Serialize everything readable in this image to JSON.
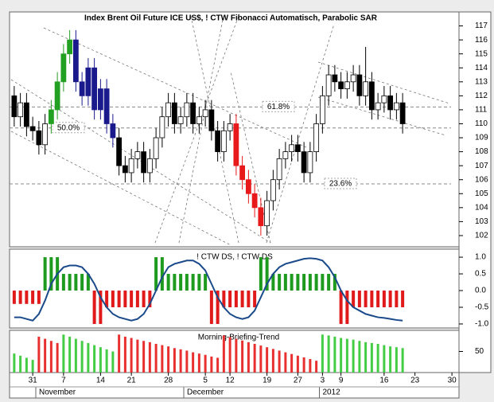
{
  "chart_data": [
    {
      "type": "candlestick",
      "title": "Index Brent Oil Future ICE US$, ! CTW Fibonacci Automatisch, Parabolic SAR",
      "categories": [
        null,
        null,
        null,
        "31",
        null,
        null,
        null,
        null,
        "7",
        null,
        null,
        null,
        null,
        null,
        "14",
        null,
        null,
        null,
        null,
        "21",
        null,
        null,
        null,
        null,
        null,
        "28",
        null,
        null,
        null,
        null,
        null,
        "5",
        null,
        null,
        null,
        "12",
        null,
        null,
        null,
        null,
        null,
        "19",
        null,
        null,
        null,
        null,
        "27",
        null,
        null,
        null,
        "3",
        null,
        null,
        "9",
        null,
        null,
        null,
        null,
        null,
        null,
        "16",
        null,
        null,
        null,
        null,
        "23",
        null,
        null,
        null,
        null,
        null,
        "30"
      ],
      "months": [
        null,
        null,
        null,
        null,
        "November",
        null,
        null,
        null,
        null,
        null,
        null,
        null,
        null,
        null,
        null,
        null,
        null,
        null,
        null,
        null,
        null,
        null,
        null,
        null,
        null,
        null,
        null,
        null,
        "December",
        null,
        null,
        null,
        null,
        null,
        null,
        null,
        null,
        null,
        null,
        null,
        null,
        null,
        null,
        null,
        null,
        null,
        null,
        null,
        null,
        null,
        "2012",
        null,
        null,
        null,
        null,
        null,
        null,
        null,
        null,
        null,
        null,
        null,
        null,
        null,
        null,
        null,
        null,
        null,
        null,
        null,
        null,
        null
      ],
      "open": [
        112,
        110.5,
        111.5,
        109.8,
        109.5,
        108.5,
        110,
        111,
        113,
        115,
        116,
        113,
        112,
        114,
        111,
        112.5,
        110,
        109,
        107,
        106.5,
        107.5,
        108,
        106.5,
        107.5,
        109,
        110.5,
        111.5,
        110,
        110.5,
        111.5,
        110,
        110.5,
        111,
        109.5,
        108,
        109.5,
        110,
        107,
        106,
        105,
        104,
        102.7,
        104.5,
        106,
        107.5,
        108,
        108.5,
        108,
        106.5,
        108,
        110,
        112,
        113.5,
        113,
        112.5,
        113,
        113.5,
        112,
        113,
        111,
        111.5,
        112,
        111,
        111.5,
        null,
        null,
        null,
        null,
        null,
        null,
        null,
        null
      ],
      "high": [
        112.7,
        112.2,
        112.2,
        110.5,
        110.2,
        110.7,
        111.7,
        113.7,
        115.7,
        116.7,
        116.7,
        113.7,
        114.7,
        114.7,
        113.2,
        113.2,
        110.7,
        109.7,
        107.7,
        108.2,
        108.7,
        108.7,
        108.2,
        109.7,
        111.2,
        112.2,
        112.2,
        111.2,
        112.2,
        112.2,
        111.2,
        111.7,
        111.7,
        110.2,
        110.2,
        110.7,
        110.7,
        107.7,
        106.7,
        105.7,
        104.7,
        105.2,
        106.7,
        108.2,
        108.7,
        109.2,
        109.2,
        108.7,
        108.7,
        110.7,
        112.7,
        114.2,
        114.2,
        113.7,
        113.7,
        114.2,
        114.2,
        115.5,
        113.7,
        112.2,
        112.7,
        112.7,
        112.2,
        112.2,
        null,
        null,
        null,
        null,
        null,
        null,
        null,
        null
      ],
      "low": [
        109.8,
        109.8,
        109.1,
        108.8,
        107.8,
        107.8,
        109.3,
        110.3,
        112.3,
        114.3,
        112.3,
        111.3,
        111.3,
        110.3,
        110.3,
        109.3,
        108.3,
        106.3,
        105.8,
        105.8,
        106.8,
        105.8,
        105.8,
        106.8,
        108.3,
        109.8,
        109.3,
        109.3,
        109.8,
        109.3,
        109.3,
        109.8,
        108.8,
        107.3,
        107.3,
        108.8,
        106.3,
        105.3,
        104.3,
        103.3,
        102,
        102,
        103.8,
        105.3,
        106.8,
        107.3,
        107.3,
        105.8,
        105.8,
        107.3,
        109.3,
        111.3,
        112.3,
        111.8,
        111.8,
        112.3,
        111.3,
        111.3,
        110.3,
        110.3,
        110.8,
        110.3,
        110.3,
        109.3,
        null,
        null,
        null,
        null,
        null,
        null,
        null,
        null
      ],
      "close": [
        110.5,
        111.5,
        109.8,
        109.5,
        108.5,
        110,
        111,
        113,
        115,
        116,
        113,
        112,
        114,
        111,
        112.5,
        110,
        109,
        107,
        106.5,
        107.5,
        108,
        106.5,
        107.5,
        109,
        110.5,
        111.5,
        110,
        110.5,
        111.5,
        110,
        110.5,
        111,
        109.5,
        108,
        109.5,
        110,
        107,
        106,
        105,
        104,
        102.7,
        104.5,
        106,
        107.5,
        108,
        108.5,
        108,
        106.5,
        108,
        110,
        112,
        113.5,
        113,
        112.5,
        113,
        113.5,
        112,
        113,
        111,
        111.5,
        112,
        111,
        111.5,
        110,
        null,
        null,
        null,
        null,
        null,
        null,
        null,
        null
      ],
      "colors": [
        null,
        null,
        null,
        null,
        null,
        null,
        "#22a022",
        "#22a022",
        "#22a022",
        "#22a022",
        "#1a1a8c",
        "#1a1a8c",
        "#1a1a8c",
        "#1a1a8c",
        "#1a1a8c",
        "#1a1a8c",
        "#1a1a8c",
        null,
        null,
        null,
        null,
        null,
        null,
        null,
        null,
        null,
        null,
        null,
        null,
        null,
        null,
        null,
        null,
        null,
        null,
        null,
        "#e8191b",
        "#e8191b",
        "#e8191b",
        "#e8191b",
        "#e8191b",
        null,
        null,
        null,
        null,
        null,
        null,
        null,
        null,
        null,
        null,
        null,
        null,
        null,
        null,
        null,
        null,
        null,
        null,
        null,
        null,
        null,
        null,
        null,
        null,
        null,
        null,
        null,
        null,
        null,
        null,
        null
      ],
      "up_color": "#ffffff",
      "down_color": "#000000",
      "fib_levels": [
        {
          "label": "61.8%",
          "value": 111.2
        },
        {
          "label": "50.0%",
          "value": 109.7
        },
        {
          "label": "23.6%",
          "value": 105.7
        }
      ],
      "ylim": [
        101.2,
        118
      ],
      "yticks": [
        102,
        103,
        104,
        105,
        106,
        107,
        108,
        109,
        110,
        111,
        112,
        113,
        114,
        115,
        116,
        117
      ]
    },
    {
      "type": "oscillator",
      "title": "! CTW DS, ! CTW DS",
      "values": [
        -0.4,
        -0.4,
        -0.4,
        -0.4,
        -0.4,
        1,
        1,
        1,
        0.5,
        0.5,
        0.5,
        0.5,
        0.5,
        -1,
        -1,
        -0.5,
        -0.5,
        -0.5,
        -0.5,
        -0.5,
        -0.5,
        -0.5,
        -0.5,
        1,
        1,
        0.5,
        0.5,
        0.5,
        0.5,
        0.5,
        0.5,
        0.5,
        -1,
        -1,
        -0.5,
        -0.5,
        -0.5,
        -0.5,
        -0.5,
        -0.5,
        1,
        1,
        0.5,
        0.5,
        0.5,
        0.5,
        0.5,
        0.5,
        0.5,
        0.5,
        0.5,
        0.5,
        0.5,
        -1,
        -1,
        -0.5,
        -0.5,
        -0.5,
        -0.5,
        -0.5,
        -0.5,
        -0.5,
        -0.5,
        -0.5,
        null,
        null,
        null,
        null,
        null,
        null,
        null,
        null
      ],
      "line": [
        -0.8,
        -0.8,
        -0.85,
        -0.9,
        -0.7,
        -0.3,
        0.2,
        0.5,
        0.7,
        0.75,
        0.75,
        0.7,
        0.5,
        0.2,
        -0.2,
        -0.5,
        -0.7,
        -0.8,
        -0.85,
        -0.9,
        -0.85,
        -0.7,
        -0.4,
        0.0,
        0.4,
        0.7,
        0.8,
        0.85,
        0.9,
        0.9,
        0.8,
        0.6,
        0.2,
        -0.2,
        -0.5,
        -0.7,
        -0.8,
        -0.85,
        -0.8,
        -0.6,
        -0.2,
        0.2,
        0.5,
        0.7,
        0.8,
        0.85,
        0.9,
        0.95,
        0.97,
        0.95,
        0.9,
        0.7,
        0.4,
        0.0,
        -0.3,
        -0.5,
        -0.6,
        -0.7,
        -0.75,
        -0.8,
        -0.82,
        -0.85,
        -0.88,
        -0.9,
        null,
        null,
        null,
        null,
        null,
        null,
        null,
        null
      ],
      "up_color": "#1e9a1e",
      "down_color": "#e01a1a",
      "line_color": "#1a4a8a",
      "ylim": [
        -1.12,
        1.24
      ],
      "yticks": [
        {
          "value": 1,
          "label": "1.0"
        },
        {
          "value": 0.5,
          "label": "0.5"
        },
        {
          "value": 0,
          "label": "0.0"
        },
        {
          "value": -0.5,
          "label": "-0.5"
        },
        {
          "value": -1,
          "label": "-1.0"
        }
      ]
    },
    {
      "type": "bar",
      "title": "Morning-Briefing-Trend",
      "values": [
        45,
        40,
        35,
        30,
        85,
        80,
        75,
        70,
        90,
        85,
        80,
        75,
        70,
        65,
        60,
        55,
        50,
        90,
        85,
        82,
        78,
        75,
        72,
        68,
        65,
        62,
        58,
        55,
        52,
        48,
        45,
        42,
        38,
        35,
        88,
        84,
        80,
        76,
        72,
        68,
        64,
        60,
        56,
        52,
        48,
        44,
        40,
        36,
        32,
        28,
        90,
        88,
        85,
        82,
        80,
        78,
        75,
        72,
        70,
        68,
        65,
        62,
        60,
        58,
        null,
        null,
        null,
        null,
        null,
        null,
        null,
        null
      ],
      "colors": [
        "#44cc44",
        "#44cc44",
        "#44cc44",
        "#44cc44",
        "#e83030",
        "#e83030",
        "#e83030",
        "#e83030",
        "#44cc44",
        "#44cc44",
        "#44cc44",
        "#44cc44",
        "#44cc44",
        "#44cc44",
        "#44cc44",
        "#44cc44",
        "#44cc44",
        "#e83030",
        "#e83030",
        "#e83030",
        "#e83030",
        "#e83030",
        "#e83030",
        "#e83030",
        "#e83030",
        "#e83030",
        "#e83030",
        "#e83030",
        "#e83030",
        "#e83030",
        "#e83030",
        "#e83030",
        "#e83030",
        "#e83030",
        "#e83030",
        "#e83030",
        "#e83030",
        "#e83030",
        "#e83030",
        "#e83030",
        "#e83030",
        "#e83030",
        "#e83030",
        "#e83030",
        "#e83030",
        "#e83030",
        "#e83030",
        "#e83030",
        "#e83030",
        "#e83030",
        "#44cc44",
        "#44cc44",
        "#44cc44",
        "#44cc44",
        "#44cc44",
        "#44cc44",
        "#44cc44",
        "#44cc44",
        "#44cc44",
        "#44cc44",
        "#44cc44",
        "#44cc44",
        "#44cc44",
        "#44cc44",
        null,
        null,
        null,
        null,
        null,
        null,
        null,
        null
      ],
      "ylim": [
        0,
        100
      ],
      "yticks": [
        50
      ]
    }
  ]
}
